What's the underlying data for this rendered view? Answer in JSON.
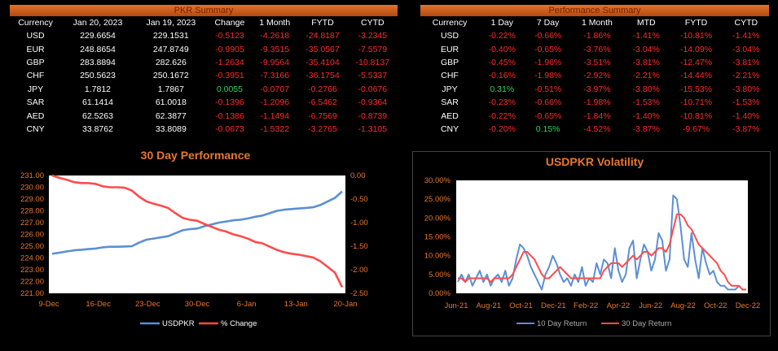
{
  "pkr_summary": {
    "title": "PKR Summary",
    "headers": [
      "Currency",
      "Jan 20, 2023",
      "Jan 19, 2023",
      "Change",
      "1 Month",
      "FYTD",
      "CYTD"
    ],
    "rows": [
      [
        "USD",
        "229.6654",
        "229.1531",
        "-0.5123",
        "-4.2618",
        "-24.8187",
        "-3.2345"
      ],
      [
        "EUR",
        "248.8654",
        "247.8749",
        "-0.9905",
        "-9.3515",
        "-35.0567",
        "-7.5579"
      ],
      [
        "GBP",
        "283.8894",
        "282.626",
        "-1.2634",
        "-9.9564",
        "-35.4104",
        "-10.8137"
      ],
      [
        "CHF",
        "250.5623",
        "250.1672",
        "-0.3951",
        "-7.3166",
        "-36.1754",
        "-5.5337"
      ],
      [
        "JPY",
        "1.7812",
        "1.7867",
        "0.0055",
        "-0.0707",
        "-0.2766",
        "-0.0676"
      ],
      [
        "SAR",
        "61.1414",
        "61.0018",
        "-0.1396",
        "-1.2096",
        "-6.5462",
        "-0.9364"
      ],
      [
        "AED",
        "62.5263",
        "62.3877",
        "-0.1386",
        "-1.1494",
        "-6.7569",
        "-0.8739"
      ],
      [
        "CNY",
        "33.8762",
        "33.8089",
        "-0.0673",
        "-1.5322",
        "-3.2765",
        "-1.3105"
      ]
    ]
  },
  "performance_summary": {
    "title": "Performance Summary",
    "headers": [
      "Currency",
      "1 Day",
      "7 Day",
      "1 Month",
      "MTD",
      "FYTD",
      "CYTD"
    ],
    "rows": [
      [
        "USD",
        "-0.22%",
        "-0.66%",
        "-1.86%",
        "-1.41%",
        "-10.81%",
        "-1.41%"
      ],
      [
        "EUR",
        "-0.40%",
        "-0.65%",
        "-3.76%",
        "-3.04%",
        "-14.09%",
        "-3.04%"
      ],
      [
        "GBP",
        "-0.45%",
        "-1.96%",
        "-3.51%",
        "-3.81%",
        "-12.47%",
        "-3.81%"
      ],
      [
        "CHF",
        "-0.16%",
        "-1.98%",
        "-2.92%",
        "-2.21%",
        "-14.44%",
        "-2.21%"
      ],
      [
        "JPY",
        "0.31%",
        "-0.51%",
        "-3.97%",
        "-3.80%",
        "-15.53%",
        "-3.80%"
      ],
      [
        "SAR",
        "-0.23%",
        "-0.66%",
        "-1.98%",
        "-1.53%",
        "-10.71%",
        "-1.53%"
      ],
      [
        "AED",
        "-0.22%",
        "-0.65%",
        "-1.84%",
        "-1.40%",
        "-10.81%",
        "-1.40%"
      ],
      [
        "CNY",
        "-0.20%",
        "0.15%",
        "-4.52%",
        "-3.87%",
        "-9.67%",
        "-3.87%"
      ]
    ]
  },
  "colors": {
    "accent": "#e8772e",
    "negative": "#ff2a2a",
    "positive": "#2fd35a",
    "blue": "#5b8fd4",
    "red": "#ff4b4b"
  },
  "chart_data": [
    {
      "type": "line",
      "title": "30 Day Performance",
      "x_ticks": [
        "9-Dec",
        "16-Dec",
        "23-Dec",
        "30-Dec",
        "6-Jan",
        "13-Jan",
        "20-Jan"
      ],
      "y_left_ticks": [
        "221.00",
        "222.00",
        "223.00",
        "224.00",
        "225.00",
        "226.00",
        "227.00",
        "228.00",
        "229.00",
        "230.00",
        "231.00"
      ],
      "y_right_ticks": [
        "0.00",
        "-0.50",
        "-1.00",
        "-1.50",
        "-2.00",
        "-2.50"
      ],
      "ylim_left": [
        221,
        231
      ],
      "ylim_right": [
        -2.5,
        0
      ],
      "series": [
        {
          "name": "USDPKR",
          "axis": "left",
          "color": "#5b8fd4",
          "values": [
            224.35,
            224.45,
            224.55,
            224.65,
            224.7,
            224.75,
            224.8,
            224.9,
            224.95,
            224.95,
            224.97,
            225.0,
            225.3,
            225.55,
            225.65,
            225.75,
            225.85,
            226.1,
            226.35,
            226.45,
            226.5,
            226.7,
            226.85,
            227.0,
            227.1,
            227.2,
            227.25,
            227.35,
            227.5,
            227.6,
            227.8,
            228.0,
            228.1,
            228.15,
            228.2,
            228.25,
            228.3,
            228.5,
            228.8,
            229.1,
            229.65
          ]
        },
        {
          "name": "% Change",
          "axis": "right",
          "color": "#ff4b4b",
          "values": [
            0.0,
            -0.05,
            -0.09,
            -0.14,
            -0.16,
            -0.16,
            -0.18,
            -0.23,
            -0.25,
            -0.25,
            -0.26,
            -0.32,
            -0.45,
            -0.55,
            -0.6,
            -0.64,
            -0.69,
            -0.8,
            -0.9,
            -0.94,
            -0.96,
            -1.03,
            -1.09,
            -1.15,
            -1.19,
            -1.25,
            -1.29,
            -1.34,
            -1.41,
            -1.44,
            -1.51,
            -1.58,
            -1.63,
            -1.66,
            -1.68,
            -1.71,
            -1.74,
            -1.82,
            -1.94,
            -2.06,
            -2.37
          ]
        }
      ]
    },
    {
      "type": "line",
      "title": "USDPKR Volatility",
      "x_ticks": [
        "Jun-21",
        "Aug-21",
        "Oct-21",
        "Dec-21",
        "Feb-22",
        "Apr-22",
        "Jun-22",
        "Aug-22",
        "Oct-22",
        "Dec-22"
      ],
      "y_ticks": [
        "0.00%",
        "5.00%",
        "10.00%",
        "15.00%",
        "20.00%",
        "25.00%",
        "30.00%"
      ],
      "ylim": [
        0,
        30
      ],
      "series": [
        {
          "name": "10 Day Return",
          "color": "#5b8fd4",
          "values": [
            3,
            5,
            3,
            5,
            2,
            4,
            6,
            3,
            5,
            2,
            4,
            5,
            3,
            6,
            2,
            4,
            9,
            13,
            12,
            10,
            7,
            5,
            3,
            1,
            5,
            7,
            10,
            8,
            5,
            3,
            4,
            2,
            5,
            3,
            7,
            2,
            4,
            3,
            8,
            5,
            9,
            8,
            4,
            12,
            6,
            3,
            5,
            12,
            14,
            4,
            9,
            13,
            11,
            6,
            9,
            16,
            14,
            6,
            9,
            26,
            25,
            18,
            9,
            7,
            16,
            9,
            4,
            12,
            8,
            5,
            6,
            3,
            2,
            2,
            1,
            1,
            1,
            2,
            1,
            1
          ]
        },
        {
          "name": "30 Day Return",
          "color": "#ff4b4b",
          "values": [
            4,
            4,
            3,
            4,
            4,
            4,
            4,
            4,
            4,
            3,
            4,
            4,
            4,
            4,
            4,
            5,
            7,
            9,
            11,
            11,
            10,
            9,
            7,
            5,
            4,
            4,
            5,
            6,
            7,
            6,
            5,
            4,
            4,
            4,
            4,
            4,
            4,
            4,
            4,
            4,
            6,
            7,
            8,
            8,
            8,
            7,
            8,
            9,
            10,
            9,
            10,
            11,
            11,
            10,
            11,
            12,
            12,
            11,
            13,
            17,
            21,
            21,
            20,
            18,
            17,
            15,
            13,
            12,
            11,
            10,
            9,
            8,
            6,
            5,
            3,
            2,
            2,
            2,
            1,
            1
          ]
        }
      ]
    }
  ]
}
